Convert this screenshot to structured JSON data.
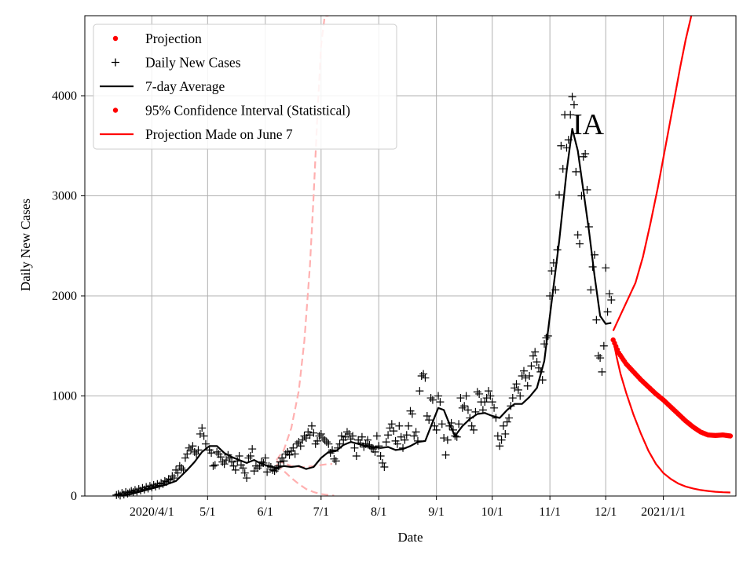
{
  "chart_data": {
    "type": "line",
    "state_label": "IA",
    "xlabel": "Date",
    "ylabel": "Daily New Cases",
    "xlim_days_since_2020_03_01": [
      -5,
      345
    ],
    "ylim": [
      0,
      4800
    ],
    "grid": true,
    "legend_position": "top-left",
    "x_ticks": [
      {
        "day": 31,
        "label": "2020/4/1"
      },
      {
        "day": 61,
        "label": "5/1"
      },
      {
        "day": 92,
        "label": "6/1"
      },
      {
        "day": 122,
        "label": "7/1"
      },
      {
        "day": 153,
        "label": "8/1"
      },
      {
        "day": 184,
        "label": "9/1"
      },
      {
        "day": 214,
        "label": "10/1"
      },
      {
        "day": 245,
        "label": "11/1"
      },
      {
        "day": 275,
        "label": "12/1"
      },
      {
        "day": 306,
        "label": "2021/1/1"
      }
    ],
    "y_ticks": [
      {
        "value": 0,
        "label": "0"
      },
      {
        "value": 1000,
        "label": "1000"
      },
      {
        "value": 2000,
        "label": "2000"
      },
      {
        "value": 3000,
        "label": "3000"
      },
      {
        "value": 4000,
        "label": "4000"
      }
    ],
    "legend": [
      {
        "label": "Projection",
        "style": "red-dot"
      },
      {
        "label": "Daily New Cases",
        "style": "black-plus"
      },
      {
        "label": "7-day Average",
        "style": "black-line"
      },
      {
        "label": "95% Confidence Interval (Statistical)",
        "style": "red-dot"
      },
      {
        "label": "Projection Made on June 7",
        "style": "red-line"
      }
    ],
    "colors": {
      "projection": "#ff0000",
      "daily": "#000000",
      "average": "#000000",
      "june7": "#ffb0b0",
      "grid": "#b0b0b0"
    },
    "series": [
      {
        "name": "7-day Average",
        "x": [
          14,
          20,
          26,
          32,
          38,
          44,
          50,
          54,
          58,
          62,
          66,
          70,
          74,
          78,
          82,
          86,
          90,
          94,
          98,
          102,
          106,
          110,
          114,
          118,
          122,
          126,
          130,
          134,
          138,
          142,
          146,
          150,
          154,
          158,
          162,
          166,
          170,
          174,
          178,
          182,
          185,
          188,
          191,
          194,
          198,
          202,
          206,
          210,
          214,
          218,
          222,
          226,
          230,
          234,
          238,
          242,
          246,
          250,
          254,
          257,
          260,
          263,
          266,
          269,
          272,
          275,
          278
        ],
        "values": [
          5,
          20,
          50,
          80,
          110,
          150,
          260,
          340,
          440,
          500,
          500,
          430,
          390,
          360,
          330,
          360,
          320,
          300,
          280,
          300,
          290,
          300,
          270,
          290,
          380,
          440,
          450,
          510,
          540,
          520,
          500,
          490,
          480,
          490,
          460,
          470,
          500,
          540,
          550,
          740,
          880,
          860,
          720,
          600,
          700,
          770,
          820,
          830,
          800,
          780,
          860,
          920,
          920,
          990,
          1080,
          1350,
          1950,
          2550,
          3250,
          3670,
          3450,
          3050,
          2650,
          2200,
          1800,
          1720,
          1730
        ]
      },
      {
        "name": "Projection",
        "x": [
          279,
          282,
          286,
          290,
          294,
          298,
          302,
          306,
          310,
          314,
          318,
          322,
          326,
          330,
          334,
          338,
          342
        ],
        "values": [
          1560,
          1430,
          1320,
          1240,
          1160,
          1090,
          1020,
          960,
          890,
          820,
          750,
          690,
          640,
          610,
          605,
          610,
          600
        ]
      },
      {
        "name": "95% CI Upper",
        "x": [
          279,
          283,
          287,
          291,
          295,
          299,
          303,
          307,
          311,
          315,
          318,
          321
        ],
        "values": [
          1650,
          1810,
          1970,
          2130,
          2390,
          2720,
          3080,
          3480,
          3880,
          4280,
          4560,
          4800
        ]
      },
      {
        "name": "95% CI Lower",
        "x": [
          279,
          281,
          283,
          286,
          290,
          294,
          298,
          302,
          306,
          310,
          314,
          318,
          322,
          326,
          330,
          334,
          338,
          342
        ],
        "values": [
          1560,
          1380,
          1220,
          1030,
          810,
          620,
          450,
          320,
          230,
          170,
          125,
          95,
          75,
          60,
          50,
          42,
          38,
          35
        ]
      },
      {
        "name": "Projection Made on June 7 (upper)",
        "x": [
          98,
          102,
          106,
          110,
          113,
          116,
          118,
          120,
          122,
          124,
          126
        ],
        "values": [
          360,
          460,
          680,
          1050,
          1550,
          2300,
          3000,
          3800,
          4500,
          4800,
          4800
        ]
      },
      {
        "name": "Projection Made on June 7 (lower)",
        "x": [
          98,
          102,
          106,
          110,
          114,
          118,
          122,
          126,
          129
        ],
        "values": [
          320,
          250,
          180,
          120,
          70,
          40,
          20,
          10,
          5
        ]
      },
      {
        "name": "Projection Made on June 7 (central)",
        "x": [
          98,
          102,
          106,
          110,
          114,
          118,
          122,
          126,
          128
        ],
        "values": [
          350,
          330,
          300,
          290,
          290,
          300,
          310,
          320,
          320
        ]
      }
    ],
    "daily_new_cases": [
      [
        12,
        10
      ],
      [
        13,
        20
      ],
      [
        14,
        5
      ],
      [
        15,
        30
      ],
      [
        16,
        15
      ],
      [
        17,
        40
      ],
      [
        18,
        25
      ],
      [
        19,
        35
      ],
      [
        20,
        50
      ],
      [
        21,
        40
      ],
      [
        22,
        60
      ],
      [
        23,
        45
      ],
      [
        24,
        70
      ],
      [
        25,
        55
      ],
      [
        26,
        80
      ],
      [
        27,
        65
      ],
      [
        28,
        90
      ],
      [
        29,
        75
      ],
      [
        30,
        100
      ],
      [
        31,
        85
      ],
      [
        32,
        110
      ],
      [
        33,
        95
      ],
      [
        34,
        120
      ],
      [
        35,
        105
      ],
      [
        36,
        130
      ],
      [
        37,
        120
      ],
      [
        38,
        150
      ],
      [
        39,
        140
      ],
      [
        40,
        170
      ],
      [
        41,
        160
      ],
      [
        42,
        200
      ],
      [
        43,
        180
      ],
      [
        44,
        260
      ],
      [
        45,
        230
      ],
      [
        46,
        300
      ],
      [
        47,
        280
      ],
      [
        48,
        260
      ],
      [
        49,
        380
      ],
      [
        50,
        420
      ],
      [
        51,
        480
      ],
      [
        52,
        460
      ],
      [
        53,
        500
      ],
      [
        54,
        440
      ],
      [
        55,
        420
      ],
      [
        56,
        460
      ],
      [
        57,
        620
      ],
      [
        58,
        680
      ],
      [
        59,
        600
      ],
      [
        60,
        520
      ],
      [
        62,
        460
      ],
      [
        63,
        430
      ],
      [
        64,
        300
      ],
      [
        65,
        310
      ],
      [
        66,
        440
      ],
      [
        67,
        420
      ],
      [
        68,
        390
      ],
      [
        69,
        340
      ],
      [
        70,
        320
      ],
      [
        71,
        360
      ],
      [
        72,
        410
      ],
      [
        73,
        380
      ],
      [
        74,
        340
      ],
      [
        75,
        300
      ],
      [
        76,
        260
      ],
      [
        77,
        350
      ],
      [
        78,
        400
      ],
      [
        79,
        310
      ],
      [
        80,
        280
      ],
      [
        81,
        230
      ],
      [
        82,
        180
      ],
      [
        83,
        380
      ],
      [
        84,
        400
      ],
      [
        85,
        470
      ],
      [
        86,
        250
      ],
      [
        87,
        300
      ],
      [
        88,
        280
      ],
      [
        89,
        300
      ],
      [
        90,
        340
      ],
      [
        91,
        330
      ],
      [
        92,
        380
      ],
      [
        93,
        240
      ],
      [
        94,
        300
      ],
      [
        95,
        290
      ],
      [
        96,
        260
      ],
      [
        97,
        250
      ],
      [
        98,
        270
      ],
      [
        99,
        300
      ],
      [
        100,
        340
      ],
      [
        101,
        380
      ],
      [
        102,
        350
      ],
      [
        103,
        420
      ],
      [
        104,
        440
      ],
      [
        105,
        410
      ],
      [
        106,
        450
      ],
      [
        107,
        480
      ],
      [
        108,
        420
      ],
      [
        109,
        520
      ],
      [
        110,
        540
      ],
      [
        111,
        500
      ],
      [
        112,
        560
      ],
      [
        113,
        600
      ],
      [
        114,
        580
      ],
      [
        115,
        640
      ],
      [
        116,
        610
      ],
      [
        117,
        700
      ],
      [
        118,
        630
      ],
      [
        119,
        520
      ],
      [
        120,
        550
      ],
      [
        121,
        600
      ],
      [
        122,
        620
      ],
      [
        123,
        580
      ],
      [
        124,
        560
      ],
      [
        125,
        540
      ],
      [
        126,
        520
      ],
      [
        127,
        430
      ],
      [
        128,
        460
      ],
      [
        129,
        370
      ],
      [
        130,
        350
      ],
      [
        131,
        480
      ],
      [
        132,
        520
      ],
      [
        133,
        600
      ],
      [
        134,
        560
      ],
      [
        135,
        590
      ],
      [
        136,
        640
      ],
      [
        137,
        620
      ],
      [
        138,
        570
      ],
      [
        139,
        600
      ],
      [
        140,
        480
      ],
      [
        141,
        400
      ],
      [
        142,
        560
      ],
      [
        143,
        530
      ],
      [
        144,
        590
      ],
      [
        145,
        490
      ],
      [
        146,
        520
      ],
      [
        147,
        560
      ],
      [
        148,
        510
      ],
      [
        149,
        480
      ],
      [
        150,
        470
      ],
      [
        151,
        440
      ],
      [
        152,
        600
      ],
      [
        153,
        500
      ],
      [
        154,
        400
      ],
      [
        155,
        330
      ],
      [
        156,
        290
      ],
      [
        157,
        540
      ],
      [
        158,
        610
      ],
      [
        159,
        680
      ],
      [
        160,
        720
      ],
      [
        161,
        650
      ],
      [
        162,
        550
      ],
      [
        163,
        520
      ],
      [
        164,
        700
      ],
      [
        165,
        590
      ],
      [
        166,
        480
      ],
      [
        167,
        560
      ],
      [
        168,
        610
      ],
      [
        169,
        700
      ],
      [
        170,
        850
      ],
      [
        171,
        820
      ],
      [
        172,
        600
      ],
      [
        173,
        640
      ],
      [
        174,
        550
      ],
      [
        175,
        1050
      ],
      [
        176,
        1200
      ],
      [
        177,
        1220
      ],
      [
        178,
        1180
      ],
      [
        179,
        800
      ],
      [
        180,
        760
      ],
      [
        181,
        980
      ],
      [
        182,
        960
      ],
      [
        183,
        700
      ],
      [
        184,
        660
      ],
      [
        185,
        1000
      ],
      [
        186,
        940
      ],
      [
        187,
        720
      ],
      [
        188,
        580
      ],
      [
        189,
        410
      ],
      [
        190,
        560
      ],
      [
        191,
        700
      ],
      [
        192,
        730
      ],
      [
        193,
        660
      ],
      [
        194,
        600
      ],
      [
        195,
        590
      ],
      [
        196,
        720
      ],
      [
        197,
        980
      ],
      [
        198,
        880
      ],
      [
        199,
        900
      ],
      [
        200,
        1000
      ],
      [
        201,
        860
      ],
      [
        202,
        780
      ],
      [
        203,
        700
      ],
      [
        204,
        660
      ],
      [
        205,
        840
      ],
      [
        206,
        1040
      ],
      [
        207,
        1020
      ],
      [
        208,
        940
      ],
      [
        209,
        860
      ],
      [
        210,
        940
      ],
      [
        211,
        980
      ],
      [
        212,
        1050
      ],
      [
        213,
        1000
      ],
      [
        214,
        940
      ],
      [
        215,
        880
      ],
      [
        216,
        780
      ],
      [
        217,
        600
      ],
      [
        218,
        500
      ],
      [
        219,
        560
      ],
      [
        220,
        700
      ],
      [
        221,
        620
      ],
      [
        222,
        740
      ],
      [
        223,
        780
      ],
      [
        224,
        900
      ],
      [
        225,
        980
      ],
      [
        226,
        1080
      ],
      [
        227,
        1120
      ],
      [
        228,
        1060
      ],
      [
        229,
        1000
      ],
      [
        230,
        1200
      ],
      [
        231,
        1250
      ],
      [
        232,
        1180
      ],
      [
        233,
        1100
      ],
      [
        234,
        1200
      ],
      [
        235,
        1300
      ],
      [
        236,
        1400
      ],
      [
        237,
        1440
      ],
      [
        238,
        1340
      ],
      [
        239,
        1280
      ],
      [
        240,
        1240
      ],
      [
        241,
        1160
      ],
      [
        242,
        1520
      ],
      [
        243,
        1580
      ],
      [
        244,
        1600
      ],
      [
        245,
        2000
      ],
      [
        246,
        2250
      ],
      [
        247,
        2330
      ],
      [
        248,
        2060
      ],
      [
        249,
        2460
      ],
      [
        250,
        3010
      ],
      [
        251,
        3500
      ],
      [
        252,
        3270
      ],
      [
        253,
        3810
      ],
      [
        254,
        3480
      ],
      [
        255,
        3560
      ],
      [
        256,
        3810
      ],
      [
        257,
        3990
      ],
      [
        258,
        3910
      ],
      [
        259,
        3240
      ],
      [
        260,
        2610
      ],
      [
        261,
        2520
      ],
      [
        262,
        3000
      ],
      [
        263,
        3390
      ],
      [
        264,
        3420
      ],
      [
        265,
        3060
      ],
      [
        266,
        2690
      ],
      [
        267,
        2060
      ],
      [
        268,
        2290
      ],
      [
        269,
        2410
      ],
      [
        270,
        1760
      ],
      [
        271,
        1400
      ],
      [
        272,
        1380
      ],
      [
        273,
        1240
      ],
      [
        274,
        1500
      ],
      [
        275,
        2280
      ],
      [
        276,
        1840
      ],
      [
        277,
        2020
      ],
      [
        278,
        1960
      ]
    ]
  }
}
